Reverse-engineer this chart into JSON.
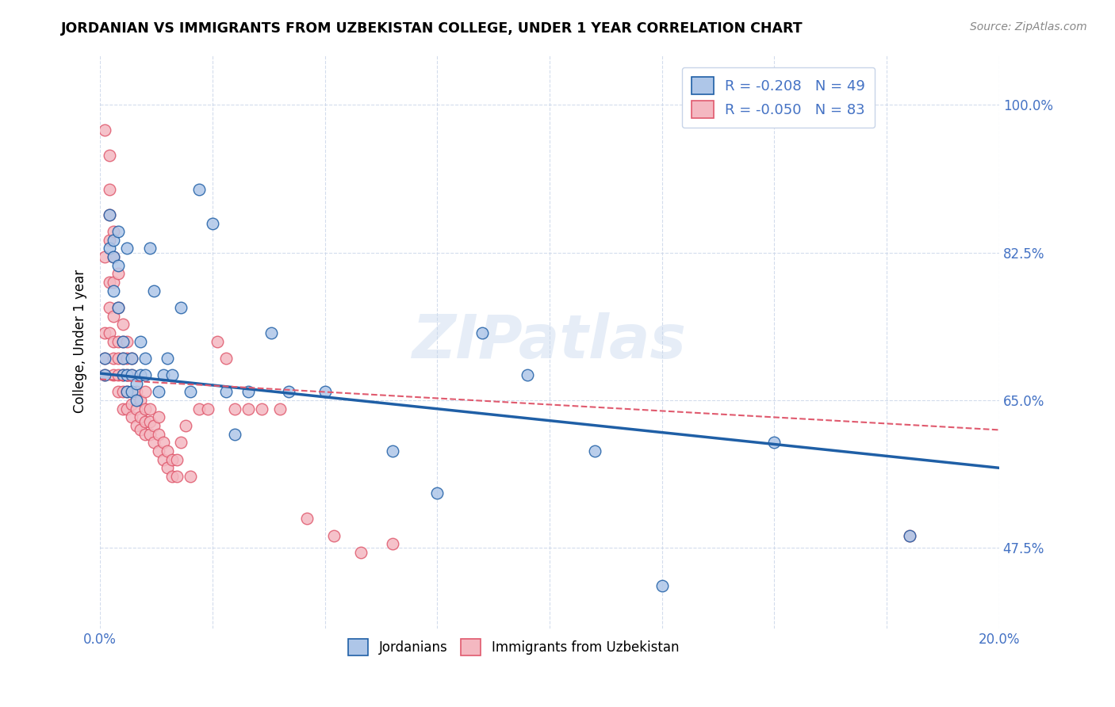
{
  "title": "JORDANIAN VS IMMIGRANTS FROM UZBEKISTAN COLLEGE, UNDER 1 YEAR CORRELATION CHART",
  "source": "Source: ZipAtlas.com",
  "ylabel": "College, Under 1 year",
  "yticks": [
    0.475,
    0.65,
    0.825,
    1.0
  ],
  "ytick_labels": [
    "47.5%",
    "65.0%",
    "82.5%",
    "100.0%"
  ],
  "xmin": 0.0,
  "xmax": 0.2,
  "ymin": 0.38,
  "ymax": 1.06,
  "legend_R1": "R = -0.208",
  "legend_N1": "N = 49",
  "legend_R2": "R = -0.050",
  "legend_N2": "N = 83",
  "color_jordanian": "#aec6e8",
  "color_uzbek": "#f4b8c1",
  "color_line1": "#1f5fa6",
  "color_line2": "#e05a6e",
  "color_ticks": "#4472c4",
  "watermark": "ZIPatlas",
  "jordanians_x": [
    0.001,
    0.001,
    0.002,
    0.002,
    0.003,
    0.003,
    0.003,
    0.004,
    0.004,
    0.004,
    0.005,
    0.005,
    0.005,
    0.006,
    0.006,
    0.006,
    0.007,
    0.007,
    0.007,
    0.008,
    0.008,
    0.009,
    0.009,
    0.01,
    0.01,
    0.011,
    0.012,
    0.013,
    0.014,
    0.015,
    0.016,
    0.018,
    0.02,
    0.022,
    0.025,
    0.028,
    0.03,
    0.033,
    0.038,
    0.042,
    0.05,
    0.065,
    0.075,
    0.085,
    0.095,
    0.11,
    0.125,
    0.15,
    0.18
  ],
  "jordanians_y": [
    0.68,
    0.7,
    0.83,
    0.87,
    0.78,
    0.82,
    0.84,
    0.76,
    0.81,
    0.85,
    0.68,
    0.7,
    0.72,
    0.66,
    0.68,
    0.83,
    0.66,
    0.68,
    0.7,
    0.65,
    0.67,
    0.68,
    0.72,
    0.68,
    0.7,
    0.83,
    0.78,
    0.66,
    0.68,
    0.7,
    0.68,
    0.76,
    0.66,
    0.9,
    0.86,
    0.66,
    0.61,
    0.66,
    0.73,
    0.66,
    0.66,
    0.59,
    0.54,
    0.73,
    0.68,
    0.59,
    0.43,
    0.6,
    0.49
  ],
  "uzbek_x": [
    0.001,
    0.001,
    0.001,
    0.001,
    0.001,
    0.002,
    0.002,
    0.002,
    0.002,
    0.002,
    0.002,
    0.002,
    0.003,
    0.003,
    0.003,
    0.003,
    0.003,
    0.003,
    0.003,
    0.004,
    0.004,
    0.004,
    0.004,
    0.004,
    0.004,
    0.005,
    0.005,
    0.005,
    0.005,
    0.005,
    0.005,
    0.006,
    0.006,
    0.006,
    0.006,
    0.006,
    0.007,
    0.007,
    0.007,
    0.007,
    0.007,
    0.008,
    0.008,
    0.008,
    0.009,
    0.009,
    0.009,
    0.01,
    0.01,
    0.01,
    0.01,
    0.011,
    0.011,
    0.011,
    0.012,
    0.012,
    0.013,
    0.013,
    0.013,
    0.014,
    0.014,
    0.015,
    0.015,
    0.016,
    0.016,
    0.017,
    0.017,
    0.018,
    0.019,
    0.02,
    0.022,
    0.024,
    0.026,
    0.028,
    0.03,
    0.033,
    0.036,
    0.04,
    0.046,
    0.052,
    0.058,
    0.065,
    0.18
  ],
  "uzbek_y": [
    0.68,
    0.7,
    0.73,
    0.82,
    0.97,
    0.73,
    0.76,
    0.79,
    0.84,
    0.87,
    0.9,
    0.94,
    0.68,
    0.7,
    0.72,
    0.75,
    0.79,
    0.82,
    0.85,
    0.66,
    0.68,
    0.7,
    0.72,
    0.76,
    0.8,
    0.64,
    0.66,
    0.68,
    0.7,
    0.72,
    0.74,
    0.64,
    0.66,
    0.68,
    0.7,
    0.72,
    0.63,
    0.645,
    0.66,
    0.68,
    0.7,
    0.62,
    0.64,
    0.66,
    0.615,
    0.63,
    0.65,
    0.61,
    0.625,
    0.64,
    0.66,
    0.61,
    0.625,
    0.64,
    0.6,
    0.62,
    0.59,
    0.61,
    0.63,
    0.58,
    0.6,
    0.57,
    0.59,
    0.56,
    0.58,
    0.56,
    0.58,
    0.6,
    0.62,
    0.56,
    0.64,
    0.64,
    0.72,
    0.7,
    0.64,
    0.64,
    0.64,
    0.64,
    0.51,
    0.49,
    0.47,
    0.48,
    0.49
  ],
  "line1_x0": 0.0,
  "line1_y0": 0.682,
  "line1_x1": 0.2,
  "line1_y1": 0.57,
  "line2_x0": 0.0,
  "line2_y0": 0.675,
  "line2_x1": 0.2,
  "line2_y1": 0.615
}
